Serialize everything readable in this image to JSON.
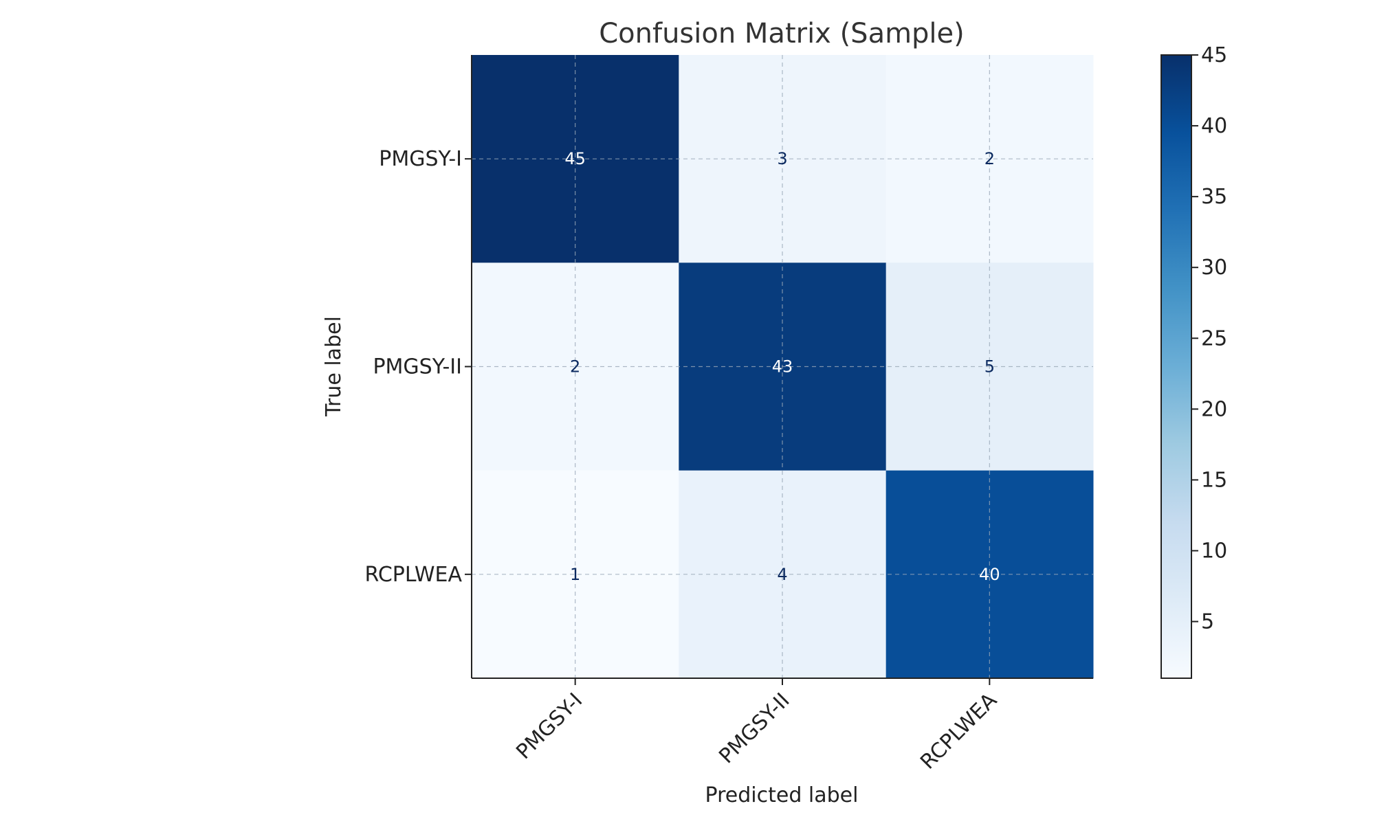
{
  "chart_data": {
    "type": "heatmap",
    "title": "Confusion Matrix (Sample)",
    "xlabel": "Predicted label",
    "ylabel": "True label",
    "x_categories": [
      "PMGSY-I",
      "PMGSY-II",
      "RCPLWEA"
    ],
    "y_categories": [
      "PMGSY-I",
      "PMGSY-II",
      "RCPLWEA"
    ],
    "values": [
      [
        45,
        3,
        2
      ],
      [
        2,
        43,
        5
      ],
      [
        1,
        4,
        40
      ]
    ],
    "colormap": "Blues",
    "colorbar": {
      "range": [
        1,
        45
      ],
      "ticks": [
        5,
        10,
        15,
        20,
        25,
        30,
        35,
        40,
        45
      ]
    },
    "grid": true,
    "x_tick_rotation": 45,
    "colors": {
      "light_text": "#ffffff",
      "dark_text": "#0b2a60"
    }
  }
}
